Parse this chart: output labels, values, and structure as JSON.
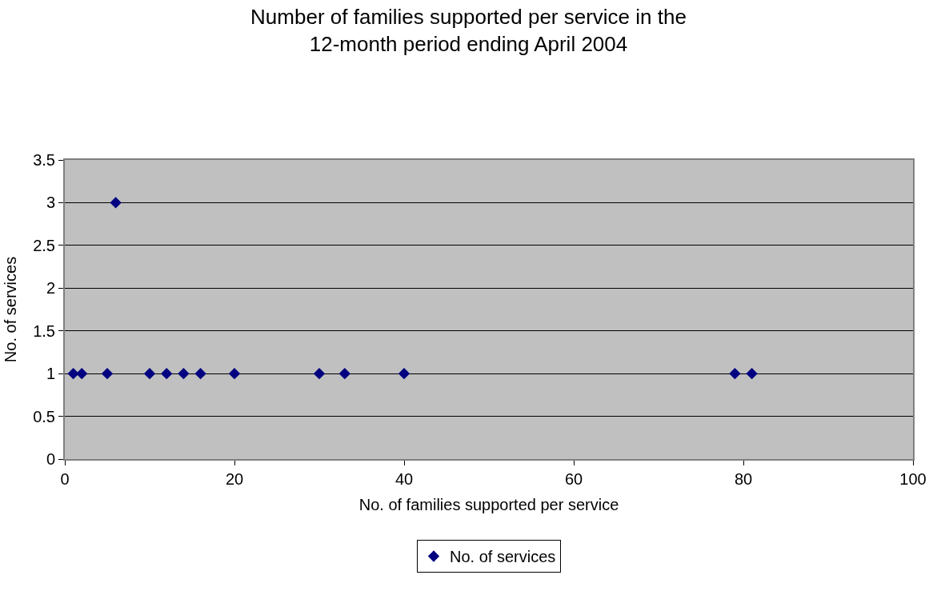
{
  "chart_data": {
    "type": "scatter",
    "title": "Number of families supported per service in the\n12-month period ending April 2004",
    "xlabel": "No. of families supported per service",
    "ylabel": "No. of services",
    "x": [
      1,
      2,
      5,
      6,
      10,
      12,
      14,
      16,
      20,
      30,
      33,
      40,
      79,
      81
    ],
    "series": [
      {
        "name": "No. of services",
        "color": "#000080",
        "values": [
          1,
          1,
          1,
          3,
          1,
          1,
          1,
          1,
          1,
          1,
          1,
          1,
          1,
          1
        ]
      }
    ],
    "xlim": [
      0,
      100
    ],
    "xticks": [
      0,
      20,
      40,
      60,
      80,
      100
    ],
    "ylim": [
      0,
      3.5
    ],
    "yticks": [
      0,
      0.5,
      1,
      1.5,
      2,
      2.5,
      3,
      3.5
    ],
    "grid": "y",
    "legend": "bottom",
    "marker": "diamond"
  }
}
